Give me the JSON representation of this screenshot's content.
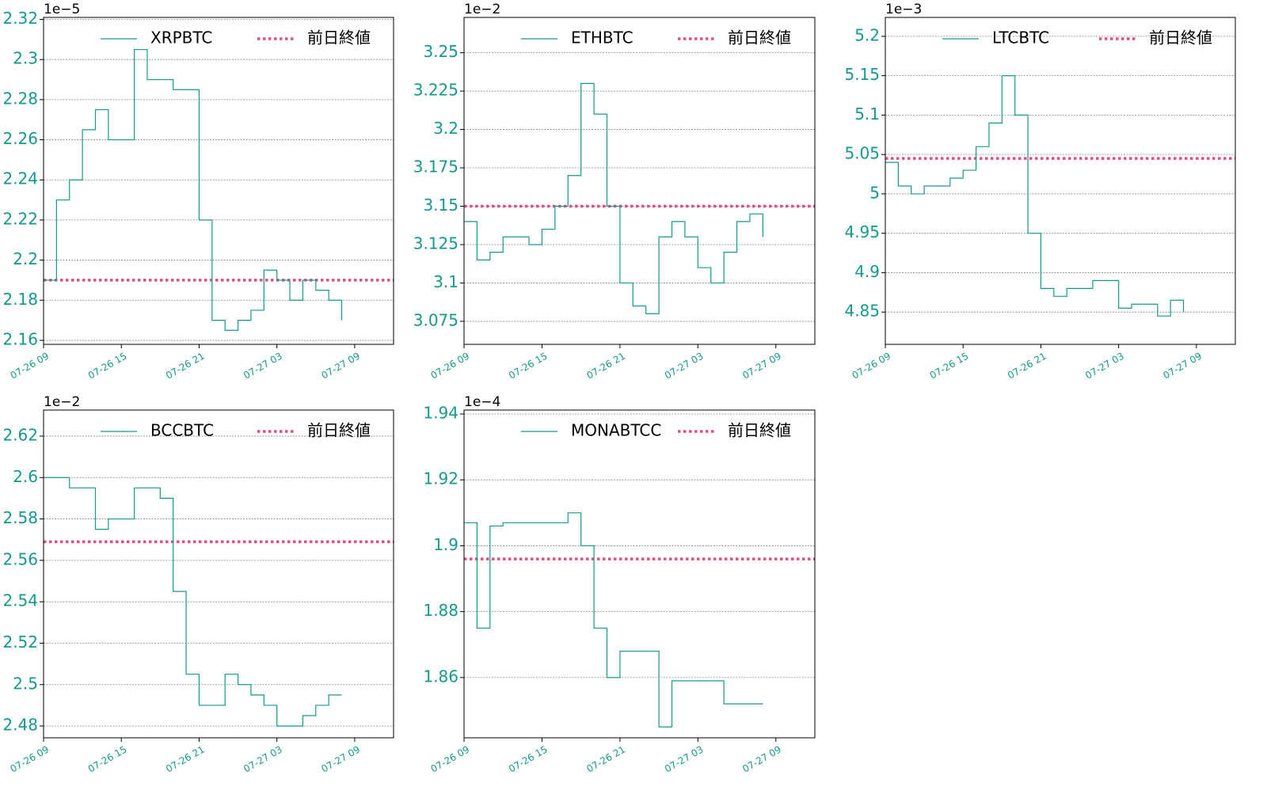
{
  "chart_data": [
    {
      "type": "line",
      "offset_label": "1e−5",
      "grid": true,
      "x": [
        "07-26 09",
        "07-26 10",
        "07-26 11",
        "07-26 12",
        "07-26 13",
        "07-26 14",
        "07-26 15",
        "07-26 16",
        "07-26 17",
        "07-26 18",
        "07-26 19",
        "07-26 20",
        "07-26 21",
        "07-26 22",
        "07-26 23",
        "07-27 00",
        "07-27 01",
        "07-27 02",
        "07-27 03",
        "07-27 04",
        "07-27 05",
        "07-27 06",
        "07-27 07",
        "07-27 08"
      ],
      "xlim": [
        "07-26 09",
        "07-27 12"
      ],
      "xticks": [
        "07-26 09",
        "07-26 15",
        "07-26 21",
        "07-27 03",
        "07-27 09"
      ],
      "ylim": [
        2.158,
        2.321
      ],
      "yticks": [
        2.16,
        2.18,
        2.2,
        2.22,
        2.24,
        2.26,
        2.28,
        2.3,
        2.32
      ],
      "series": [
        {
          "name": "XRPBTC",
          "color": "#17998a",
          "values": [
            2.19,
            2.23,
            2.24,
            2.265,
            2.275,
            2.26,
            2.26,
            2.305,
            2.29,
            2.29,
            2.285,
            2.285,
            2.22,
            2.17,
            2.165,
            2.17,
            2.175,
            2.195,
            2.19,
            2.18,
            2.19,
            2.185,
            2.18,
            2.17
          ]
        }
      ],
      "reference_line": {
        "name": "前日終値",
        "value": 2.19,
        "color": "#e0507f"
      }
    },
    {
      "type": "line",
      "offset_label": "1e−2",
      "grid": true,
      "x": [
        "07-26 09",
        "07-26 10",
        "07-26 11",
        "07-26 12",
        "07-26 13",
        "07-26 14",
        "07-26 15",
        "07-26 16",
        "07-26 17",
        "07-26 18",
        "07-26 19",
        "07-26 20",
        "07-26 21",
        "07-26 22",
        "07-26 23",
        "07-27 00",
        "07-27 01",
        "07-27 02",
        "07-27 03",
        "07-27 04",
        "07-27 05",
        "07-27 06",
        "07-27 07",
        "07-27 08"
      ],
      "xlim": [
        "07-26 09",
        "07-27 12"
      ],
      "xticks": [
        "07-26 09",
        "07-26 15",
        "07-26 21",
        "07-27 03",
        "07-27 09"
      ],
      "ylim": [
        3.06,
        3.273
      ],
      "yticks": [
        3.075,
        3.1,
        3.125,
        3.15,
        3.175,
        3.2,
        3.225,
        3.25
      ],
      "series": [
        {
          "name": "ETHBTC",
          "color": "#17998a",
          "values": [
            3.14,
            3.115,
            3.12,
            3.13,
            3.13,
            3.125,
            3.135,
            3.15,
            3.17,
            3.23,
            3.21,
            3.15,
            3.1,
            3.085,
            3.08,
            3.13,
            3.14,
            3.13,
            3.11,
            3.1,
            3.12,
            3.14,
            3.145,
            3.13
          ]
        }
      ],
      "reference_line": {
        "name": "前日終値",
        "value": 3.15,
        "color": "#e0507f"
      }
    },
    {
      "type": "line",
      "offset_label": "1e−3",
      "grid": true,
      "x": [
        "07-26 09",
        "07-26 10",
        "07-26 11",
        "07-26 12",
        "07-26 13",
        "07-26 14",
        "07-26 15",
        "07-26 16",
        "07-26 17",
        "07-26 18",
        "07-26 19",
        "07-26 20",
        "07-26 21",
        "07-26 22",
        "07-26 23",
        "07-27 00",
        "07-27 01",
        "07-27 02",
        "07-27 03",
        "07-27 04",
        "07-27 05",
        "07-27 06",
        "07-27 07",
        "07-27 08"
      ],
      "xlim": [
        "07-26 09",
        "07-27 12"
      ],
      "xticks": [
        "07-26 09",
        "07-26 15",
        "07-26 21",
        "07-27 03",
        "07-27 09"
      ],
      "ylim": [
        4.809,
        5.224
      ],
      "yticks": [
        4.85,
        4.9,
        4.95,
        5.0,
        5.05,
        5.1,
        5.15,
        5.2
      ],
      "series": [
        {
          "name": "LTCBTC",
          "color": "#17998a",
          "values": [
            5.04,
            5.01,
            5.0,
            5.01,
            5.01,
            5.02,
            5.03,
            5.06,
            5.09,
            5.15,
            5.1,
            4.95,
            4.88,
            4.87,
            4.88,
            4.88,
            4.89,
            4.89,
            4.855,
            4.86,
            4.86,
            4.845,
            4.865,
            4.85
          ]
        }
      ],
      "reference_line": {
        "name": "前日終値",
        "value": 5.045,
        "color": "#e0507f"
      }
    },
    {
      "type": "line",
      "offset_label": "1e−2",
      "grid": true,
      "x": [
        "07-26 09",
        "07-26 10",
        "07-26 11",
        "07-26 12",
        "07-26 13",
        "07-26 14",
        "07-26 15",
        "07-26 16",
        "07-26 17",
        "07-26 18",
        "07-26 19",
        "07-26 20",
        "07-26 21",
        "07-26 22",
        "07-26 23",
        "07-27 00",
        "07-27 01",
        "07-27 02",
        "07-27 03",
        "07-27 04",
        "07-27 05",
        "07-27 06",
        "07-27 07",
        "07-27 08"
      ],
      "xlim": [
        "07-26 09",
        "07-27 12"
      ],
      "xticks": [
        "07-26 09",
        "07-26 15",
        "07-26 21",
        "07-27 03",
        "07-27 09"
      ],
      "ylim": [
        2.4743,
        2.6326
      ],
      "yticks": [
        2.48,
        2.5,
        2.52,
        2.54,
        2.56,
        2.58,
        2.6,
        2.62
      ],
      "series": [
        {
          "name": "BCCBTC",
          "color": "#17998a",
          "values": [
            2.6,
            2.6,
            2.595,
            2.595,
            2.575,
            2.58,
            2.58,
            2.595,
            2.595,
            2.59,
            2.545,
            2.505,
            2.49,
            2.49,
            2.505,
            2.5,
            2.495,
            2.49,
            2.48,
            2.48,
            2.485,
            2.49,
            2.495,
            2.495
          ]
        }
      ],
      "reference_line": {
        "name": "前日終値",
        "value": 2.569,
        "color": "#e0507f"
      }
    },
    {
      "type": "line",
      "offset_label": "1e−4",
      "grid": true,
      "x": [
        "07-26 09",
        "07-26 10",
        "07-26 11",
        "07-26 12",
        "07-26 13",
        "07-26 14",
        "07-26 15",
        "07-26 16",
        "07-26 17",
        "07-26 18",
        "07-26 19",
        "07-26 20",
        "07-26 21",
        "07-26 22",
        "07-26 23",
        "07-27 00",
        "07-27 01",
        "07-27 02",
        "07-27 03",
        "07-27 04",
        "07-27 05",
        "07-27 06",
        "07-27 07",
        "07-27 08"
      ],
      "xlim": [
        "07-26 09",
        "07-27 12"
      ],
      "xticks": [
        "07-26 09",
        "07-26 15",
        "07-26 21",
        "07-27 03",
        "07-27 09"
      ],
      "ylim": [
        1.8417,
        1.9412
      ],
      "yticks": [
        1.86,
        1.88,
        1.9,
        1.92,
        1.94
      ],
      "series": [
        {
          "name": "MONABTCC",
          "color": "#17998a",
          "values": [
            1.907,
            1.875,
            1.906,
            1.907,
            1.907,
            1.907,
            1.907,
            1.907,
            1.91,
            1.9,
            1.875,
            1.86,
            1.868,
            1.868,
            1.868,
            1.845,
            1.859,
            1.859,
            1.859,
            1.859,
            1.852,
            1.852,
            1.852,
            1.852
          ]
        }
      ],
      "reference_line": {
        "name": "前日終値",
        "value": 1.896,
        "color": "#e0507f"
      }
    }
  ]
}
